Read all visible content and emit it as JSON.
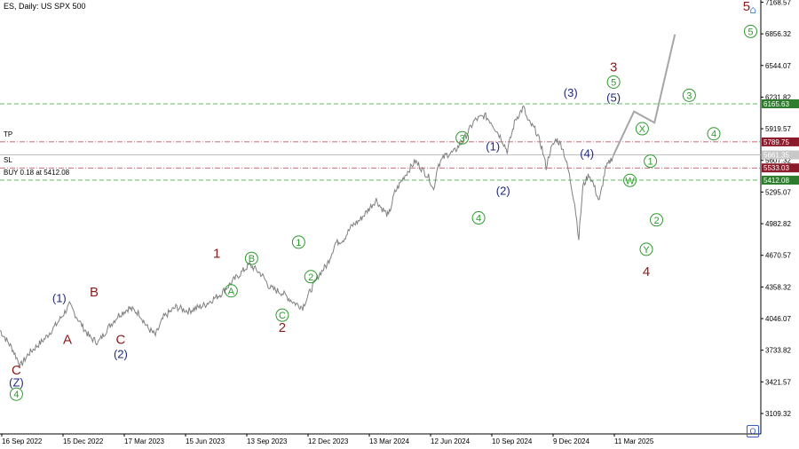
{
  "title": "ES, Daily:  US SPX 500",
  "colors": {
    "price_line": "#808080",
    "projection": "#a6a6a6",
    "green_level": "#3c9a3c",
    "red_level": "#b03a4a",
    "grid_text": "#000000",
    "wave_darkred": "#8b1a1a",
    "wave_navy": "#1f2a7a",
    "wave_green": "#2e9a2e"
  },
  "chart_data": {
    "type": "line",
    "x_ticks": [
      "16 Sep 2022",
      "15 Dec 2022",
      "17 Mar 2023",
      "15 Jun 2023",
      "13 Sep 2023",
      "12 Dec 2023",
      "13 Mar 2024",
      "12 Jun 2024",
      "10 Sep 2024",
      "9 Dec 2024",
      "11 Mar 2025"
    ],
    "y_ticks": [
      "7168.57",
      "6856.32",
      "6544.07",
      "6231.82",
      "5919.57",
      "5607.32",
      "5295.07",
      "4982.82",
      "4670.57",
      "4358.32",
      "4046.07",
      "3733.82",
      "3421.57",
      "3109.32"
    ],
    "ylim": [
      2908,
      7190
    ],
    "price_series": [
      [
        0,
        3930
      ],
      [
        6,
        3750
      ],
      [
        10,
        3580
      ],
      [
        14,
        3700
      ],
      [
        22,
        3850
      ],
      [
        28,
        4000
      ],
      [
        34,
        4180
      ],
      [
        40,
        3980
      ],
      [
        44,
        3860
      ],
      [
        48,
        3810
      ],
      [
        53,
        3960
      ],
      [
        58,
        4080
      ],
      [
        63,
        4150
      ],
      [
        68,
        4100
      ],
      [
        72,
        3960
      ],
      [
        76,
        3880
      ],
      [
        80,
        4060
      ],
      [
        86,
        4160
      ],
      [
        92,
        4120
      ],
      [
        100,
        4180
      ],
      [
        108,
        4290
      ],
      [
        114,
        4420
      ],
      [
        122,
        4580
      ],
      [
        128,
        4480
      ],
      [
        132,
        4350
      ],
      [
        138,
        4300
      ],
      [
        144,
        4200
      ],
      [
        148,
        4160
      ],
      [
        152,
        4330
      ],
      [
        156,
        4480
      ],
      [
        160,
        4580
      ],
      [
        164,
        4790
      ],
      [
        168,
        4830
      ],
      [
        172,
        4960
      ],
      [
        176,
        5020
      ],
      [
        180,
        5120
      ],
      [
        184,
        5220
      ],
      [
        186,
        5150
      ],
      [
        190,
        5060
      ],
      [
        193,
        5290
      ],
      [
        198,
        5460
      ],
      [
        203,
        5600
      ],
      [
        206,
        5530
      ],
      [
        210,
        5430
      ],
      [
        212,
        5310
      ],
      [
        214,
        5560
      ],
      [
        218,
        5660
      ],
      [
        222,
        5690
      ],
      [
        227,
        5820
      ],
      [
        232,
        6000
      ],
      [
        237,
        6050
      ],
      [
        240,
        5990
      ],
      [
        245,
        5830
      ],
      [
        248,
        5700
      ],
      [
        252,
        6010
      ],
      [
        256,
        6130
      ],
      [
        258,
        6000
      ],
      [
        262,
        5900
      ],
      [
        265,
        5730
      ],
      [
        267,
        5540
      ],
      [
        269,
        5700
      ],
      [
        272,
        5820
      ],
      [
        275,
        5740
      ],
      [
        278,
        5500
      ],
      [
        281,
        5180
      ],
      [
        283,
        4840
      ],
      [
        285,
        5350
      ],
      [
        288,
        5470
      ],
      [
        290,
        5380
      ],
      [
        293,
        5200
      ],
      [
        296,
        5520
      ],
      [
        300,
        5660
      ]
    ],
    "projection": [
      [
        300,
        5660
      ],
      [
        310,
        6090
      ],
      [
        320,
        5980
      ],
      [
        330,
        6850
      ]
    ],
    "levels": [
      {
        "value": 6165.63,
        "label": "6165.63",
        "style": "green"
      },
      {
        "value": 5789.75,
        "label": "5789.75",
        "style": "red",
        "tag": "TP"
      },
      {
        "value": 5661.35,
        "label": "5661.35",
        "style": "grey"
      },
      {
        "value": 5533.03,
        "label": "5533.03",
        "style": "red",
        "tag": "SL"
      },
      {
        "value": 5412.08,
        "label": "5412.08",
        "style": "green",
        "tag": "BUY 0.18 at 5412.08"
      }
    ],
    "wave_labels": [
      {
        "text": "C",
        "x": 8,
        "y": 3540,
        "color": "darkred",
        "circle": false
      },
      {
        "text": "(Z)",
        "x": 8,
        "y": 3420,
        "color": "navy",
        "circle": false
      },
      {
        "text": "4",
        "x": 8,
        "y": 3300,
        "color": "green",
        "circle": true
      },
      {
        "text": "(1)",
        "x": 29,
        "y": 4250,
        "color": "navy",
        "circle": false
      },
      {
        "text": "A",
        "x": 33,
        "y": 3840,
        "color": "darkred",
        "circle": false
      },
      {
        "text": "B",
        "x": 46,
        "y": 4310,
        "color": "darkred",
        "circle": false
      },
      {
        "text": "C",
        "x": 59,
        "y": 3840,
        "color": "darkred",
        "circle": false
      },
      {
        "text": "(2)",
        "x": 59,
        "y": 3700,
        "color": "navy",
        "circle": false
      },
      {
        "text": "1",
        "x": 106,
        "y": 4690,
        "color": "darkred",
        "circle": false
      },
      {
        "text": "B",
        "x": 123,
        "y": 4640,
        "color": "green",
        "circle": true
      },
      {
        "text": "A",
        "x": 113,
        "y": 4320,
        "color": "green",
        "circle": true
      },
      {
        "text": "C",
        "x": 138,
        "y": 4080,
        "color": "green",
        "circle": true
      },
      {
        "text": "2",
        "x": 138,
        "y": 3960,
        "color": "darkred",
        "circle": false
      },
      {
        "text": "1",
        "x": 146,
        "y": 4800,
        "color": "green",
        "circle": true
      },
      {
        "text": "2",
        "x": 152,
        "y": 4460,
        "color": "green",
        "circle": true
      },
      {
        "text": "3",
        "x": 226,
        "y": 5830,
        "color": "green",
        "circle": true
      },
      {
        "text": "4",
        "x": 234,
        "y": 5040,
        "color": "green",
        "circle": true
      },
      {
        "text": "(1)",
        "x": 241,
        "y": 5750,
        "color": "navy",
        "circle": false
      },
      {
        "text": "(2)",
        "x": 246,
        "y": 5310,
        "color": "navy",
        "circle": false
      },
      {
        "text": "(3)",
        "x": 279,
        "y": 6280,
        "color": "navy",
        "circle": false
      },
      {
        "text": "(4)",
        "x": 287,
        "y": 5680,
        "color": "navy",
        "circle": false
      },
      {
        "text": "(5)",
        "x": 300,
        "y": 6230,
        "color": "navy",
        "circle": false
      },
      {
        "text": "5",
        "x": 300,
        "y": 6380,
        "color": "green",
        "circle": true
      },
      {
        "text": "3",
        "x": 300,
        "y": 6530,
        "color": "darkred",
        "circle": false
      },
      {
        "text": "X",
        "x": 314,
        "y": 5920,
        "color": "green",
        "circle": true
      },
      {
        "text": "W",
        "x": 308,
        "y": 5410,
        "color": "green",
        "circle": true
      },
      {
        "text": "1",
        "x": 318,
        "y": 5600,
        "color": "green",
        "circle": true
      },
      {
        "text": "2",
        "x": 321,
        "y": 5020,
        "color": "green",
        "circle": true
      },
      {
        "text": "Y",
        "x": 316,
        "y": 4730,
        "color": "green",
        "circle": true
      },
      {
        "text": "4",
        "x": 316,
        "y": 4510,
        "color": "darkred",
        "circle": false
      },
      {
        "text": "3",
        "x": 337,
        "y": 6250,
        "color": "green",
        "circle": true
      },
      {
        "text": "4",
        "x": 349,
        "y": 5870,
        "color": "green",
        "circle": true
      },
      {
        "text": "5",
        "x": 367,
        "y": 6880,
        "color": "green",
        "circle": true
      },
      {
        "text": "5",
        "x": 365,
        "y": 7130,
        "color": "darkred",
        "circle": false
      }
    ]
  }
}
